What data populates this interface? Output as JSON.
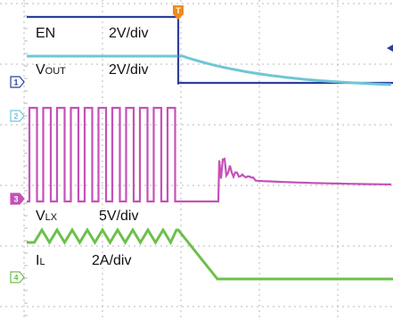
{
  "chart_data": {
    "type": "line",
    "title": "",
    "xlabel": "",
    "ylabel": "",
    "grid": true,
    "channels": [
      {
        "marker": "1",
        "name_main": "V",
        "name_sub": "OUT",
        "scale": "2V/div",
        "color": "#2b3f9c"
      },
      {
        "marker": "2",
        "name_main": "EN",
        "name_sub": "",
        "scale": "2V/div",
        "color": "#6fc6d6"
      },
      {
        "marker": "3",
        "name_main": "V",
        "name_sub": "LX",
        "scale": "5V/div",
        "color": "#c451b8"
      },
      {
        "marker": "4",
        "name_main": "I",
        "name_sub": "L",
        "scale": "2A/div",
        "color": "#6cc04a"
      }
    ],
    "trigger_marker": "T",
    "colors": {
      "en": "#2b3f9c",
      "vout": "#6fc6d6",
      "vlx": "#c451b8",
      "il": "#6cc04a",
      "trigger": "#f08a1c",
      "grid": "#b9b9b9"
    }
  }
}
